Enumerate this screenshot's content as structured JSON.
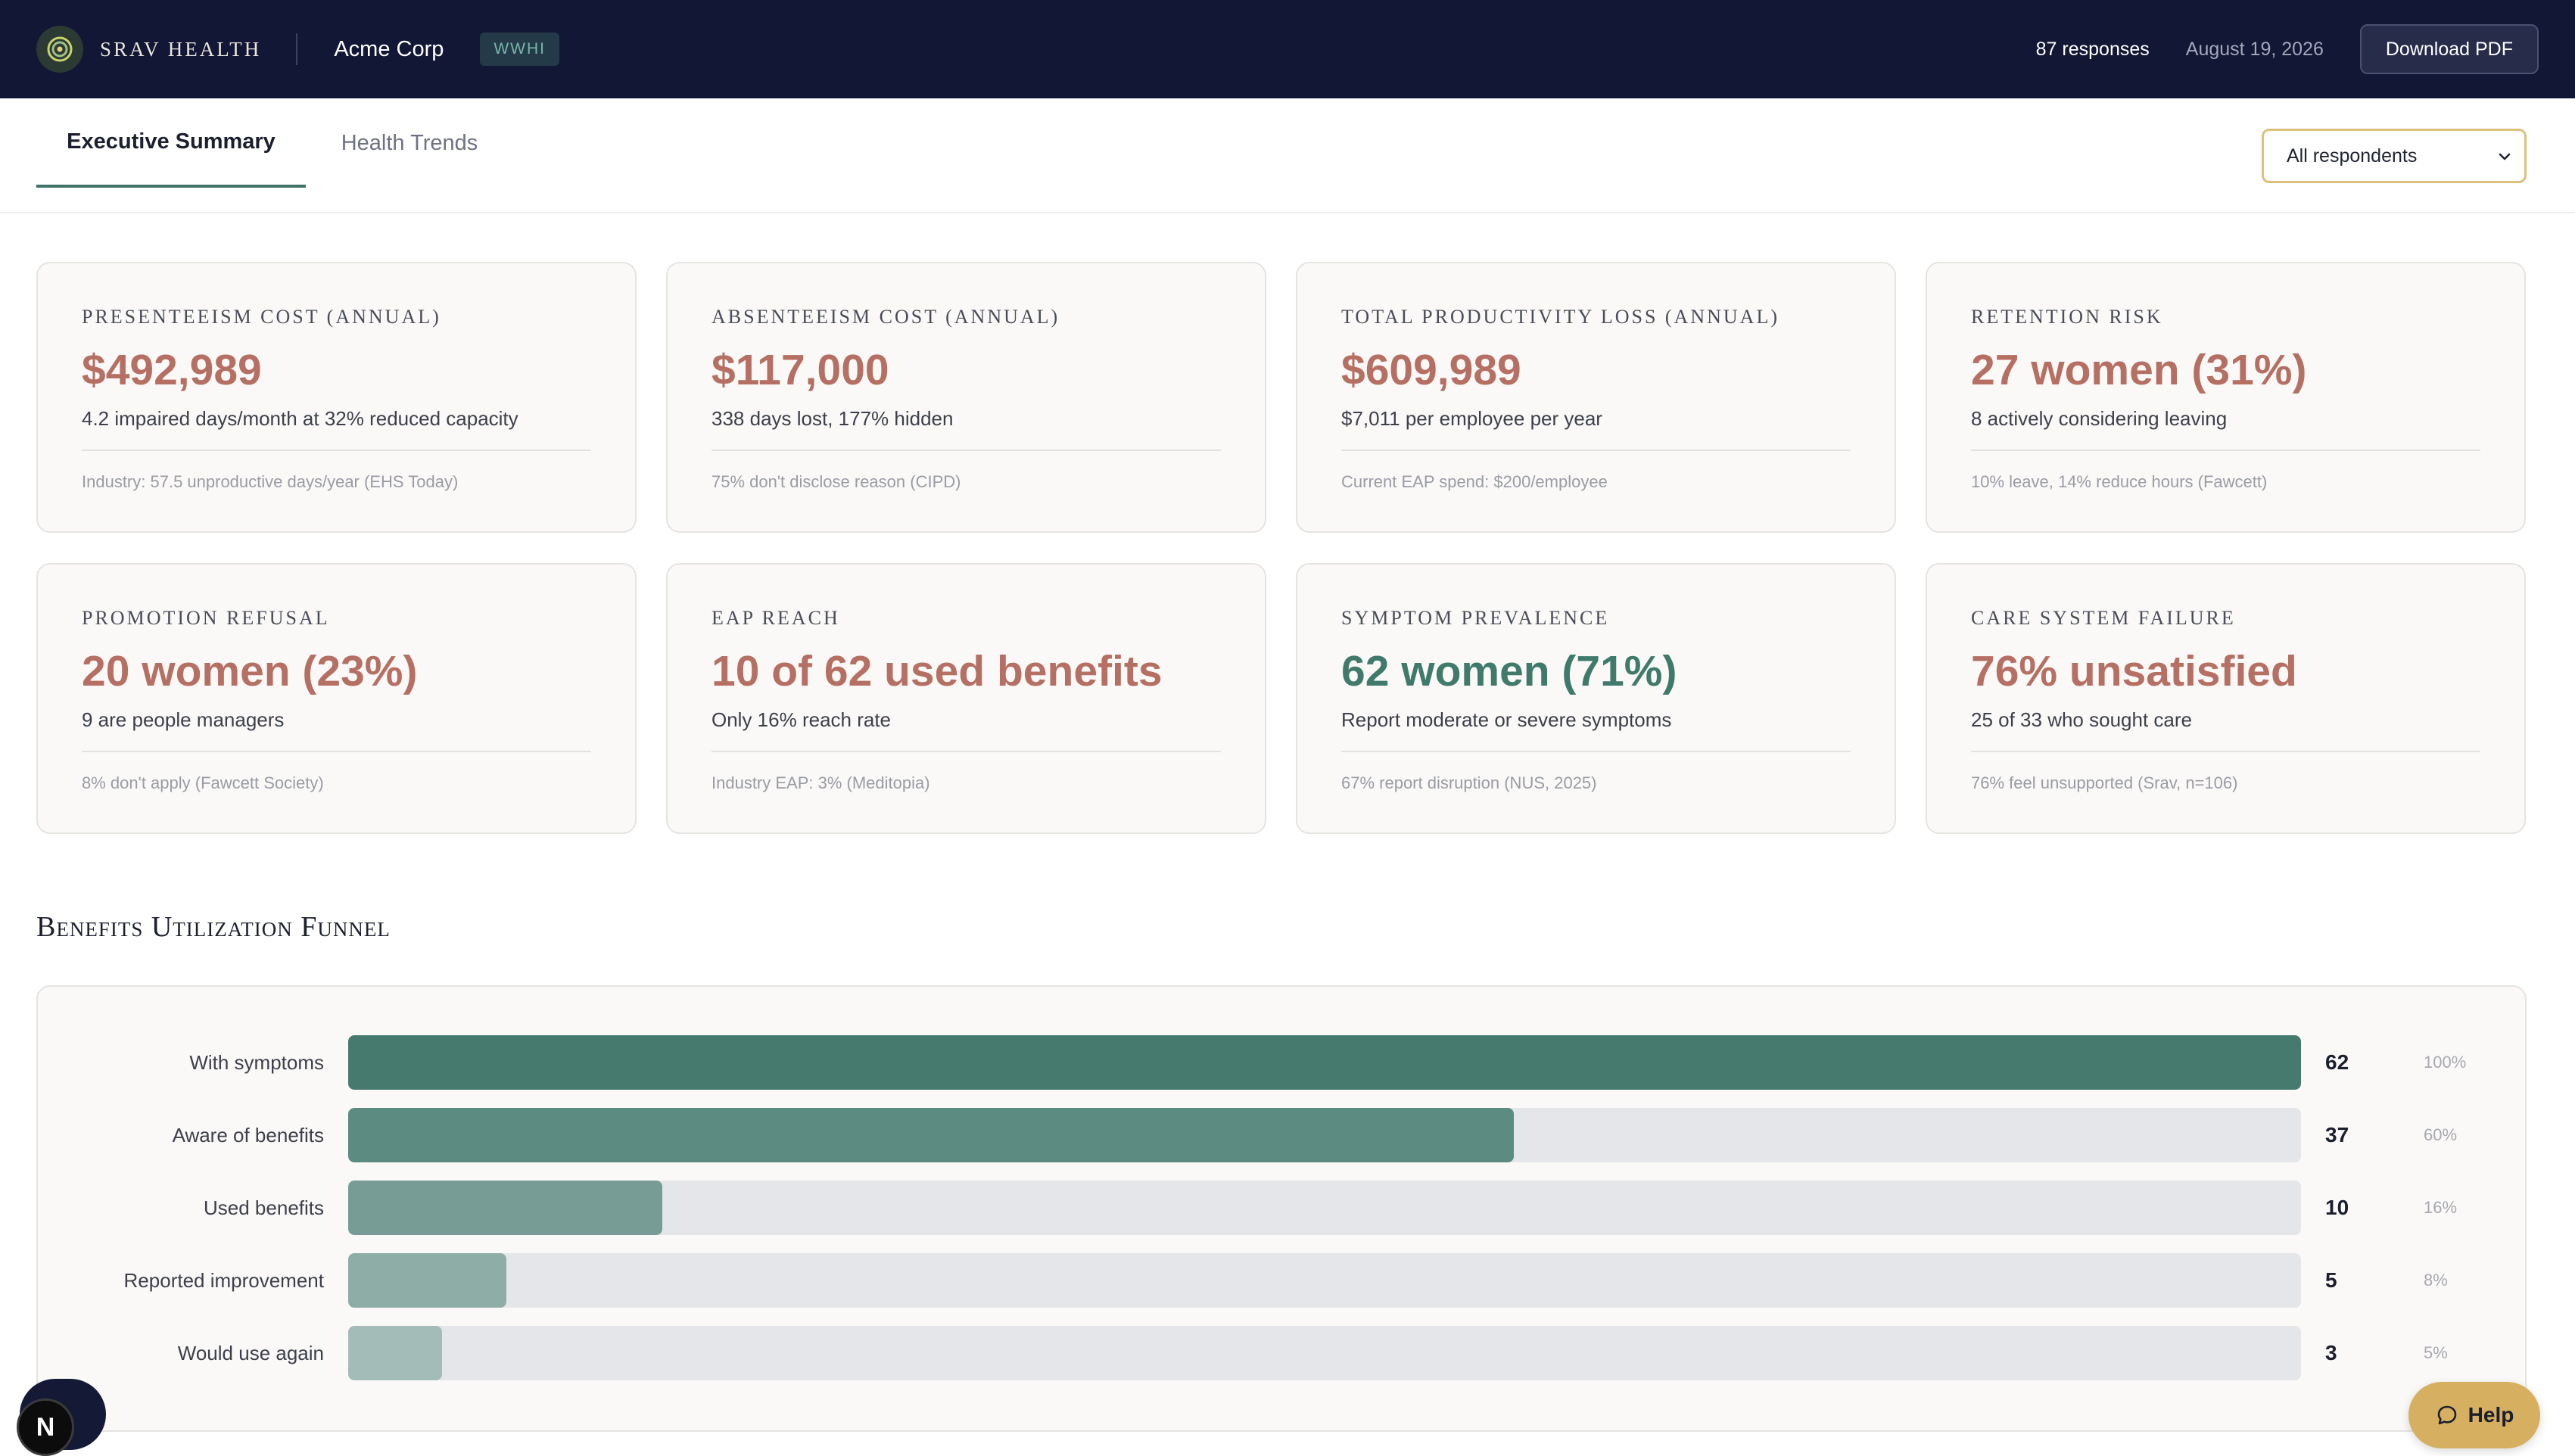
{
  "header": {
    "brand": "SRAV HEALTH",
    "company": "Acme Corp",
    "code": "WWHI",
    "responses": "87 responses",
    "date": "August 19, 2026",
    "download_label": "Download PDF"
  },
  "tabs": [
    {
      "label": "Executive Summary",
      "active": true
    },
    {
      "label": "Health Trends",
      "active": false
    }
  ],
  "filter": {
    "selected": "All respondents"
  },
  "cards": [
    {
      "label": "Presenteeism Cost (Annual)",
      "value": "$492,989",
      "sub": "4.2 impaired days/month at 32% reduced capacity",
      "foot": "Industry: 57.5 unproductive days/year (EHS Today)"
    },
    {
      "label": "Absenteeism Cost (Annual)",
      "value": "$117,000",
      "sub": "338 days lost, 177% hidden",
      "foot": "75% don't disclose reason (CIPD)"
    },
    {
      "label": "Total Productivity Loss (Annual)",
      "value": "$609,989",
      "sub": "$7,011 per employee per year",
      "foot": "Current EAP spend: $200/employee"
    },
    {
      "label": "Retention Risk",
      "value": "27 women (31%)",
      "sub": "8 actively considering leaving",
      "foot": "10% leave, 14% reduce hours (Fawcett)"
    },
    {
      "label": "Promotion Refusal",
      "value": "20 women (23%)",
      "sub": "9 are people managers",
      "foot": "8% don't apply (Fawcett Society)"
    },
    {
      "label": "EAP Reach",
      "value": "10 of 62 used benefits",
      "sub": "Only 16% reach rate",
      "foot": "Industry EAP: 3% (Meditopia)"
    },
    {
      "label": "Symptom Prevalence",
      "value": "62 women (71%)",
      "sub": "Report moderate or severe symptoms",
      "foot": "67% report disruption (NUS, 2025)"
    },
    {
      "label": "Care System Failure",
      "value": "76% unsatisfied",
      "sub": "25 of 33 who sought care",
      "foot": "76% feel unsupported (Srav, n=106)"
    }
  ],
  "colors": {
    "header_bg": "#121735",
    "accent_green": "#3f7a6a",
    "value_rose": "#b66f63",
    "filter_border": "#dcc17d",
    "help_bg": "#d6b060"
  },
  "funnel": {
    "title": "Benefits Utilization Funnel",
    "rows": [
      {
        "label": "With symptoms",
        "count": "62",
        "pct": "100%",
        "fraction": 1.0,
        "color": "#467a6f"
      },
      {
        "label": "Aware of benefits",
        "count": "37",
        "pct": "60%",
        "fraction": 0.597,
        "color": "#5c8b82"
      },
      {
        "label": "Used benefits",
        "count": "10",
        "pct": "16%",
        "fraction": 0.161,
        "color": "#769c95"
      },
      {
        "label": "Reported improvement",
        "count": "5",
        "pct": "8%",
        "fraction": 0.081,
        "color": "#8ead a7"
      },
      {
        "label": "Would use again",
        "count": "3",
        "pct": "5%",
        "fraction": 0.048,
        "color": "#a3bcb8"
      }
    ]
  },
  "widgets": {
    "avatar_letter": "N",
    "help_label": "Help"
  }
}
